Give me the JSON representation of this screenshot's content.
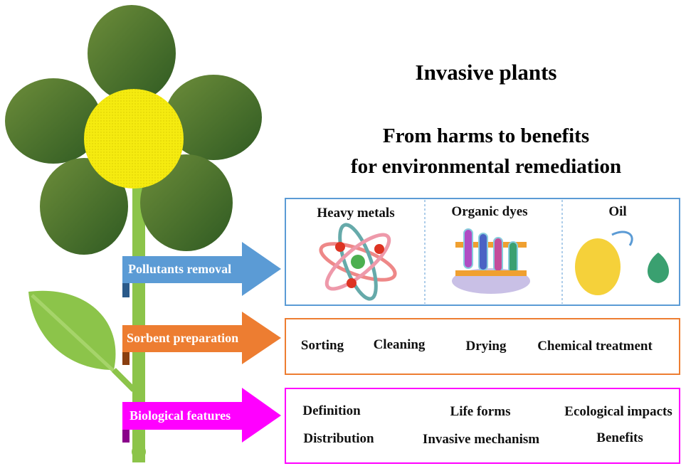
{
  "title": "Invasive plants",
  "subtitle": [
    "From harms to benefits",
    "for environmental remediation"
  ],
  "arrows": [
    "Pollutants removal",
    "Sorbent preparation",
    "Biological features"
  ],
  "pollutants": [
    "Heavy metals",
    "Organic dyes",
    "Oil"
  ],
  "sorbent": [
    "Sorting",
    "Cleaning",
    "Drying",
    "Chemical treatment"
  ],
  "biological": [
    "Definition",
    "Life forms",
    "Ecological impacts",
    "Distribution",
    "Invasive mechanism",
    "Benefits"
  ]
}
